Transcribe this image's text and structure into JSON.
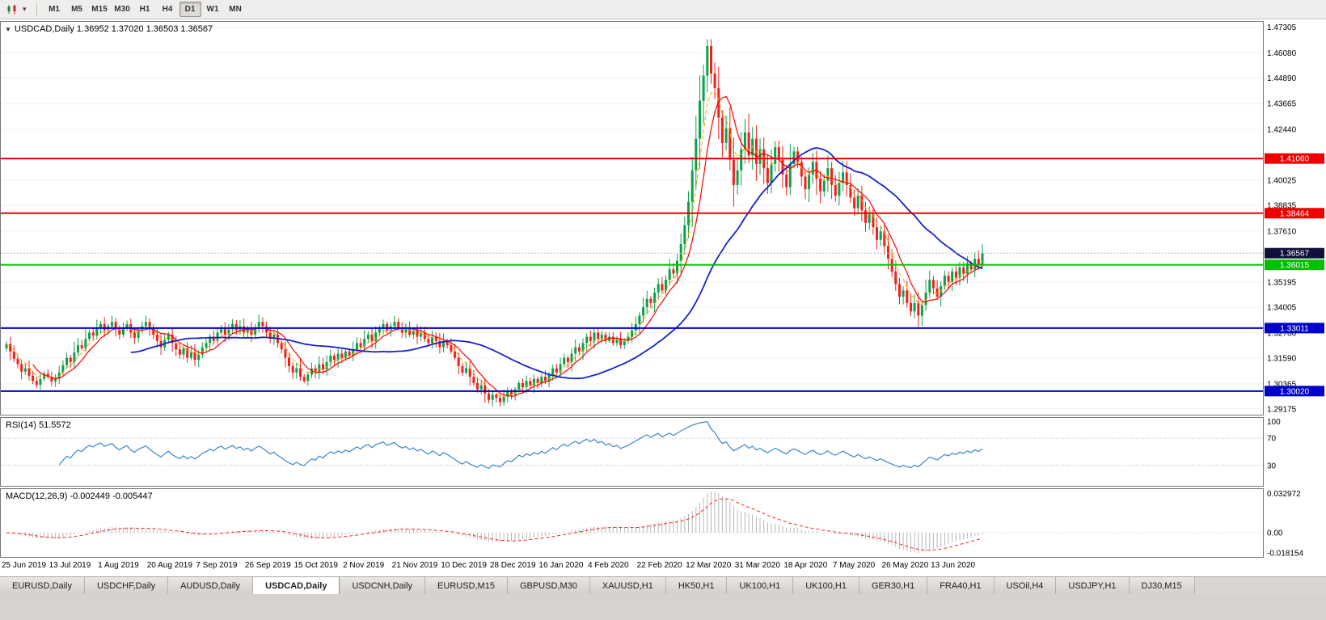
{
  "toolbar": {
    "timeframes": [
      {
        "label": "M1",
        "active": false
      },
      {
        "label": "M5",
        "active": false
      },
      {
        "label": "M15",
        "active": false
      },
      {
        "label": "M30",
        "active": false
      },
      {
        "label": "H1",
        "active": false
      },
      {
        "label": "H4",
        "active": false
      },
      {
        "label": "D1",
        "active": true
      },
      {
        "label": "W1",
        "active": false
      },
      {
        "label": "MN",
        "active": false
      }
    ]
  },
  "chart": {
    "title": {
      "symbol": "USDCAD,Daily",
      "open": "1.36952",
      "high": "1.37020",
      "low": "1.36503",
      "close": "1.36567"
    }
  },
  "indicators": {
    "rsi_label": "RSI(14) 51.5572",
    "rsi_levels": [
      100,
      70,
      30
    ],
    "macd_label": "MACD(12,26,9) -0.002449 -0.005447",
    "macd_axis": [
      {
        "v": 0.032972,
        "label": "0.032972"
      },
      {
        "v": 0,
        "label": "0.00"
      },
      {
        "v": -0.018154,
        "label": "-0.018154"
      }
    ],
    "macd_ylim": [
      -0.0185,
      0.0335
    ]
  },
  "chart_data": {
    "type": "candlestick",
    "symbol": "USDCAD",
    "timeframe": "Daily",
    "ylim": [
      1.289,
      1.4755
    ],
    "current_price": 1.36567,
    "price_axis_labels": [
      1.47305,
      1.4608,
      1.4489,
      1.43665,
      1.4244,
      1.40025,
      1.38835,
      1.3761,
      1.35195,
      1.34005,
      1.3278,
      1.3159,
      1.30365,
      1.29175
    ],
    "hlines": [
      {
        "price": 1.4106,
        "color": "#ee0000"
      },
      {
        "price": 1.38464,
        "color": "#ee0000"
      },
      {
        "price": 1.36015,
        "color": "#00c000"
      },
      {
        "price": 1.33011,
        "color": "#0000cd"
      },
      {
        "price": 1.3002,
        "color": "#0000cd"
      }
    ],
    "x_labels": [
      {
        "i": 0,
        "label": "25 Jun 2019"
      },
      {
        "i": 13,
        "label": "13 Jul 2019"
      },
      {
        "i": 26,
        "label": "1 Aug 2019"
      },
      {
        "i": 39,
        "label": "20 Aug 2019"
      },
      {
        "i": 52,
        "label": "7 Sep 2019"
      },
      {
        "i": 65,
        "label": "26 Sep 2019"
      },
      {
        "i": 78,
        "label": "15 Oct 2019"
      },
      {
        "i": 91,
        "label": "2 Nov 2019"
      },
      {
        "i": 104,
        "label": "21 Nov 2019"
      },
      {
        "i": 117,
        "label": "10 Dec 2019"
      },
      {
        "i": 130,
        "label": "28 Dec 2019"
      },
      {
        "i": 143,
        "label": "16 Jan 2020"
      },
      {
        "i": 156,
        "label": "4 Feb 2020"
      },
      {
        "i": 169,
        "label": "22 Feb 2020"
      },
      {
        "i": 182,
        "label": "12 Mar 2020"
      },
      {
        "i": 195,
        "label": "31 Mar 2020"
      },
      {
        "i": 208,
        "label": "18 Apr 2020"
      },
      {
        "i": 221,
        "label": "7 May 2020"
      },
      {
        "i": 234,
        "label": "26 May 2020"
      },
      {
        "i": 247,
        "label": "13 Jun 2020"
      }
    ],
    "ma_periods": {
      "fast": 8,
      "slow": 34,
      "dashed": 5
    },
    "closes": [
      1.3225,
      1.319,
      1.3155,
      1.313,
      1.3095,
      1.311,
      1.3075,
      1.305,
      1.3032,
      1.306,
      1.3085,
      1.307,
      1.3048,
      1.3065,
      1.309,
      1.3125,
      1.316,
      1.314,
      1.3185,
      1.322,
      1.3205,
      1.325,
      1.328,
      1.3265,
      1.33,
      1.332,
      1.329,
      1.331,
      1.333,
      1.3295,
      1.327,
      1.33,
      1.332,
      1.328,
      1.3255,
      1.329,
      1.331,
      1.333,
      1.33,
      1.327,
      1.324,
      1.321,
      1.3245,
      1.327,
      1.323,
      1.32,
      1.3175,
      1.3205,
      1.316,
      1.3185,
      1.315,
      1.3175,
      1.321,
      1.323,
      1.326,
      1.324,
      1.328,
      1.33,
      1.327,
      1.3295,
      1.332,
      1.329,
      1.331,
      1.328,
      1.33,
      1.327,
      1.3305,
      1.333,
      1.331,
      1.328,
      1.325,
      1.327,
      1.323,
      1.32,
      1.316,
      1.312,
      1.309,
      1.311,
      1.307,
      1.305,
      1.308,
      1.311,
      1.309,
      1.313,
      1.3105,
      1.314,
      1.317,
      1.315,
      1.318,
      1.316,
      1.319,
      1.317,
      1.32,
      1.323,
      1.321,
      1.325,
      1.327,
      1.324,
      1.328,
      1.33,
      1.332,
      1.329,
      1.331,
      1.333,
      1.33,
      1.328,
      1.33,
      1.327,
      1.329,
      1.326,
      1.328,
      1.325,
      1.323,
      1.326,
      1.324,
      1.321,
      1.324,
      1.322,
      1.319,
      1.316,
      1.312,
      1.309,
      1.311,
      1.307,
      1.304,
      1.301,
      1.303,
      1.299,
      1.296,
      1.2985,
      1.297,
      1.295,
      1.2975,
      1.3,
      1.2985,
      1.301,
      1.304,
      1.302,
      1.305,
      1.303,
      1.306,
      1.304,
      1.307,
      1.305,
      1.308,
      1.311,
      1.309,
      1.313,
      1.316,
      1.314,
      1.318,
      1.321,
      1.319,
      1.323,
      1.326,
      1.324,
      1.328,
      1.325,
      1.327,
      1.324,
      1.326,
      1.323,
      1.325,
      1.322,
      1.324,
      1.326,
      1.329,
      1.332,
      1.336,
      1.34,
      1.344,
      1.342,
      1.347,
      1.351,
      1.348,
      1.353,
      1.358,
      1.356,
      1.362,
      1.37,
      1.379,
      1.39,
      1.405,
      1.42,
      1.438,
      1.45,
      1.464,
      1.451,
      1.444,
      1.43,
      1.418,
      1.425,
      1.41,
      1.398,
      1.405,
      1.415,
      1.423,
      1.412,
      1.42,
      1.408,
      1.415,
      1.406,
      1.399,
      1.408,
      1.416,
      1.41,
      1.403,
      1.397,
      1.408,
      1.414,
      1.409,
      1.402,
      1.396,
      1.403,
      1.409,
      1.401,
      1.395,
      1.4,
      1.406,
      1.398,
      1.393,
      1.399,
      1.404,
      1.398,
      1.392,
      1.387,
      1.393,
      1.386,
      1.38,
      1.384,
      1.378,
      1.372,
      1.376,
      1.369,
      1.363,
      1.357,
      1.351,
      1.345,
      1.348,
      1.342,
      1.338,
      1.342,
      1.336,
      1.341,
      1.347,
      1.353,
      1.349,
      1.345,
      1.35,
      1.355,
      1.352,
      1.357,
      1.354,
      1.359,
      1.356,
      1.361,
      1.358,
      1.363,
      1.36,
      1.3657
    ],
    "colors": {
      "bull": "#0ea04c",
      "bear": "#f2201a",
      "ma_fast": "#ff0000",
      "ma_slow": "#1822cc",
      "ma_dash": "#ffa500",
      "rsi_line": "#3d85c8",
      "macd_hist": "#b6b6b6",
      "macd_signal": "#ff2020",
      "price_tag": "#10103c",
      "grid": "#f0f0f0",
      "panel_border": "#777777"
    }
  },
  "tabs": [
    {
      "label": "EURUSD,Daily",
      "active": false
    },
    {
      "label": "USDCHF,Daily",
      "active": false
    },
    {
      "label": "AUDUSD,Daily",
      "active": false
    },
    {
      "label": "USDCAD,Daily",
      "active": true
    },
    {
      "label": "USDCNH,Daily",
      "active": false
    },
    {
      "label": "EURUSD,M15",
      "active": false
    },
    {
      "label": "GBPUSD,M30",
      "active": false
    },
    {
      "label": "XAUUSD,H1",
      "active": false
    },
    {
      "label": "HK50,H1",
      "active": false
    },
    {
      "label": "UK100,H1",
      "active": false
    },
    {
      "label": "UK100,H1",
      "active": false
    },
    {
      "label": "GER30,H1",
      "active": false
    },
    {
      "label": "FRA40,H1",
      "active": false
    },
    {
      "label": "USOil,H4",
      "active": false
    },
    {
      "label": "USDJPY,H1",
      "active": false
    },
    {
      "label": "DJ30,M15",
      "active": false
    }
  ]
}
